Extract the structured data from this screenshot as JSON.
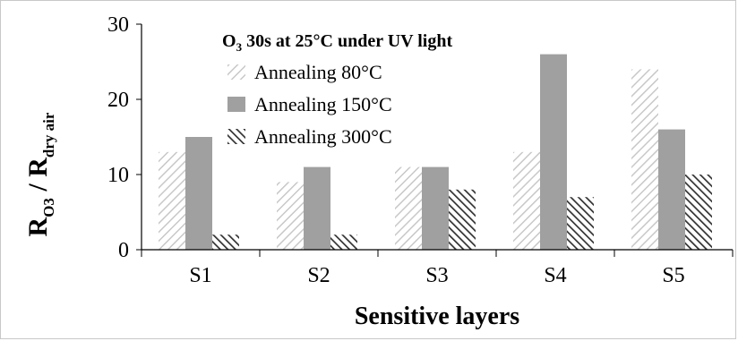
{
  "chart_data": {
    "type": "bar",
    "title_prefix": "O",
    "title_sub": "3",
    "title_rest": " 30s at 25°C under UV light",
    "xlabel": "Sensitive layers",
    "ylabel_parts": {
      "r1": "R",
      "sub1": "O3",
      "slash": " / R",
      "sub2": "dry air"
    },
    "categories": [
      "S1",
      "S2",
      "S3",
      "S4",
      "S5"
    ],
    "ylim": [
      0,
      30
    ],
    "yticks": [
      0,
      10,
      20,
      30
    ],
    "grid": false,
    "legend_position": "top-center",
    "series": [
      {
        "name": "Annealing 80°C",
        "values": [
          13,
          9,
          11,
          13,
          24
        ],
        "pattern": "light-hatch",
        "color": "#c8c8c8"
      },
      {
        "name": "Annealing 150°C",
        "values": [
          15,
          11,
          11,
          26,
          16
        ],
        "pattern": "solid",
        "color": "#a0a0a0"
      },
      {
        "name": "Annealing 300°C",
        "values": [
          2,
          2,
          8,
          7,
          10
        ],
        "pattern": "dark-hatch",
        "color": "#3c3c3c"
      }
    ]
  }
}
